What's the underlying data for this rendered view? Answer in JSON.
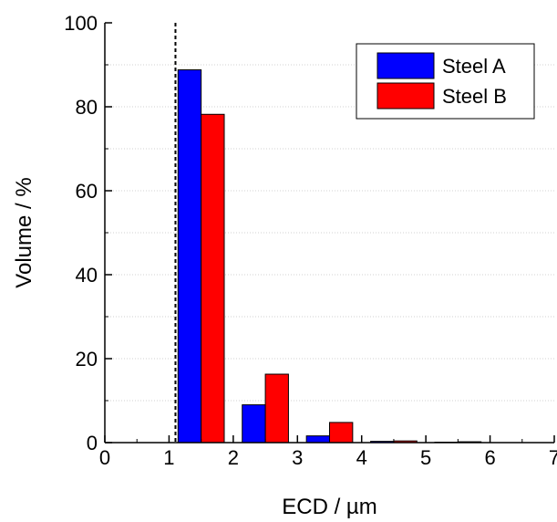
{
  "chart_data": {
    "type": "bar",
    "xlabel": "ECD / µm",
    "ylabel": "Volume / %",
    "xlim": [
      0,
      7
    ],
    "ylim": [
      0,
      100
    ],
    "xticks": [
      "0",
      "1",
      "2",
      "3",
      "4",
      "5",
      "6",
      "7"
    ],
    "yticks": [
      "0",
      "20",
      "40",
      "60",
      "80",
      "100"
    ],
    "bin_centers": [
      1.5,
      2.5,
      3.5,
      4.5,
      5.5
    ],
    "series": [
      {
        "name": "Steel A",
        "color": "#0000ff",
        "values": [
          88.8,
          9.0,
          1.6,
          0.3,
          0.1
        ]
      },
      {
        "name": "Steel B",
        "color": "#ff0000",
        "values": [
          78.2,
          16.3,
          4.8,
          0.4,
          0.2
        ]
      }
    ],
    "threshold_line_x": 1.1,
    "grid": "horizontal dotted",
    "legend_position": "top-right"
  }
}
